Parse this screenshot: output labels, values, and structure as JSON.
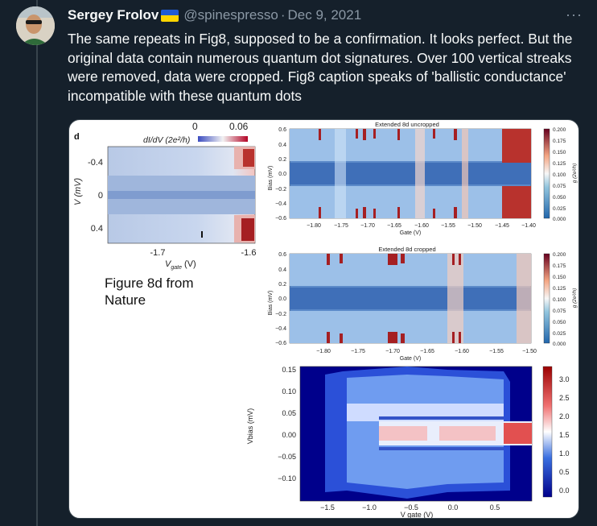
{
  "tweet": {
    "author_name": "Sergey Frolov",
    "flag_icon": "ukraine-flag-icon",
    "handle": "@spinespresso",
    "separator": "·",
    "date": "Dec 9, 2021",
    "more_label": "···",
    "text": "The same repeats in Fig8, supposed to be a confirmation. It looks perfect. But the original data contain numerous quantum dot signatures. Over 100 vertical streaks were removed, data were cropped. Fig8 caption speaks of 'ballistic conductance' incompatible with these quantum dots"
  },
  "figure": {
    "panel_letter": "d",
    "caption": "Figure 8d from Nature",
    "nature_panel": {
      "colorbar_label": "dI/dV (2e²/h)",
      "colorbar_min": "0",
      "colorbar_max": "0.06",
      "ylabel": "V (mV)",
      "yticks": [
        "-0.4",
        "0",
        "0.4"
      ],
      "xlabel": "V",
      "xlabel_sub": "gate",
      "xlabel_unit": " (V)",
      "xticks": [
        "-1.7",
        "-1.6"
      ]
    },
    "uncropped_panel": {
      "title": "Extended 8d uncropped",
      "xlabel": "Gate (V)",
      "ylabel": "Bias (mV)",
      "yticks": [
        "0.6",
        "0.4",
        "0.2",
        "0.0",
        "−0.2",
        "−0.4",
        "−0.6"
      ],
      "xticks": [
        "−1.80",
        "−1.75",
        "−1.70",
        "−1.65",
        "−1.60",
        "−1.55",
        "−1.50",
        "−1.45",
        "−1.40"
      ],
      "cbar_ticks": [
        "0.200",
        "0.175",
        "0.150",
        "0.125",
        "0.100",
        "0.075",
        "0.050",
        "0.025",
        "0.000"
      ],
      "cbar_label": "g (2e²/h)"
    },
    "cropped_panel": {
      "title": "Extended 8d cropped",
      "xlabel": "Gate (V)",
      "ylabel": "Bias (mV)",
      "yticks": [
        "0.6",
        "0.4",
        "0.2",
        "0.0",
        "−0.2",
        "−0.4",
        "−0.6"
      ],
      "xticks": [
        "−1.80",
        "−1.75",
        "−1.70",
        "−1.65",
        "−1.60",
        "−1.55",
        "−1.50"
      ],
      "cbar_ticks": [
        "0.200",
        "0.175",
        "0.150",
        "0.125",
        "0.100",
        "0.075",
        "0.050",
        "0.025",
        "0.000"
      ],
      "cbar_label": "g (2e²/h)"
    },
    "wide_panel": {
      "xlabel": "V gate (V)",
      "ylabel": "Vbias (mV)",
      "yticks": [
        "0.15",
        "0.10",
        "0.05",
        "0.00",
        "−0.05",
        "−0.10"
      ],
      "xticks": [
        "−1.5",
        "−1.0",
        "−0.5",
        "0.0",
        "0.5"
      ],
      "cbar_ticks": [
        "3.0",
        "2.5",
        "2.0",
        "1.5",
        "1.0",
        "0.5",
        "0.0"
      ]
    }
  },
  "colors": {
    "background": "#15202b",
    "text": "#f7f9f9",
    "muted": "#8b98a5",
    "map_blue": "#3b6fb5",
    "map_red": "#b2182b"
  }
}
